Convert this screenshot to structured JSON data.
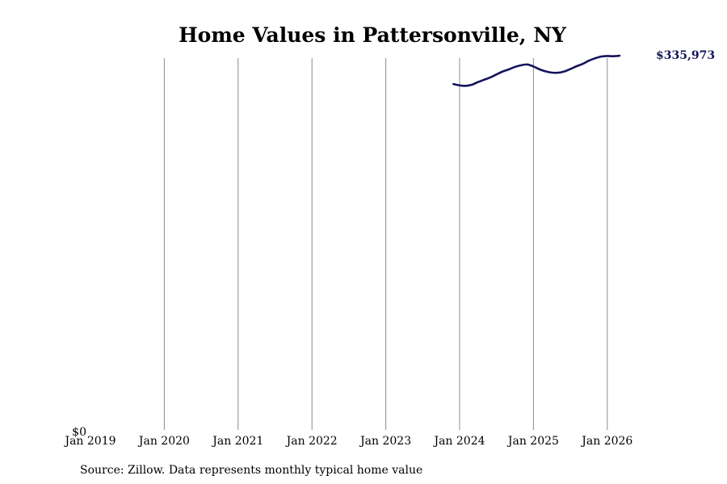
{
  "chart_data": {
    "type": "line",
    "title": "Home Values in Pattersonville, NY",
    "xlabel": "",
    "ylabel": "",
    "x_ticks": [
      "Jan 2019",
      "Jan 2020",
      "Jan 2021",
      "Jan 2022",
      "Jan 2023",
      "Jan 2024",
      "Jan 2025",
      "Jan 2026"
    ],
    "y_ticks": [
      "$0"
    ],
    "ylim": [
      0,
      336000
    ],
    "xlim": [
      "2019-01",
      "2026-07"
    ],
    "grid": "vertical lines at January of each year",
    "line_color": "#14145c",
    "series": [
      {
        "name": "",
        "values": [
          {
            "x": "2023-12",
            "y": 310500
          },
          {
            "x": "2024-01",
            "y": 309300
          },
          {
            "x": "2024-02",
            "y": 308900
          },
          {
            "x": "2024-03",
            "y": 309900
          },
          {
            "x": "2024-04",
            "y": 312300
          },
          {
            "x": "2024-05",
            "y": 314400
          },
          {
            "x": "2024-06",
            "y": 316500
          },
          {
            "x": "2024-07",
            "y": 319200
          },
          {
            "x": "2024-08",
            "y": 321800
          },
          {
            "x": "2024-09",
            "y": 323700
          },
          {
            "x": "2024-10",
            "y": 325900
          },
          {
            "x": "2024-11",
            "y": 327400
          },
          {
            "x": "2024-12",
            "y": 328100
          },
          {
            "x": "2025-01",
            "y": 326300
          },
          {
            "x": "2025-02",
            "y": 323700
          },
          {
            "x": "2025-03",
            "y": 321900
          },
          {
            "x": "2025-04",
            "y": 320800
          },
          {
            "x": "2025-05",
            "y": 320700
          },
          {
            "x": "2025-06",
            "y": 321800
          },
          {
            "x": "2025-07",
            "y": 324000
          },
          {
            "x": "2025-08",
            "y": 326500
          },
          {
            "x": "2025-09",
            "y": 328600
          },
          {
            "x": "2025-10",
            "y": 331500
          },
          {
            "x": "2025-11",
            "y": 333600
          },
          {
            "x": "2025-12",
            "y": 335200
          },
          {
            "x": "2026-01",
            "y": 335700
          },
          {
            "x": "2026-02",
            "y": 335500
          },
          {
            "x": "2026-03",
            "y": 335973
          }
        ]
      }
    ],
    "end_label": "$335,973"
  },
  "source": "Source: Zillow. Data represents monthly typical home value"
}
